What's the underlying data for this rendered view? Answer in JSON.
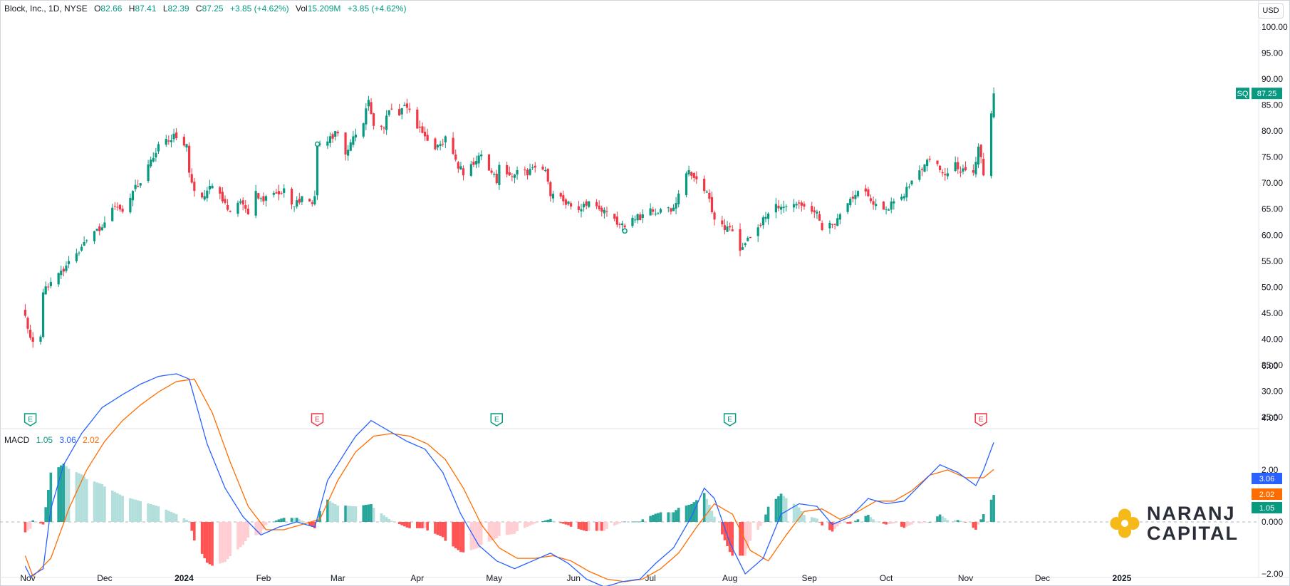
{
  "header": {
    "symbol": "Block, Inc., 1D, NYSE",
    "o_label": "O",
    "o_value": "82.66",
    "h_label": "H",
    "h_value": "87.41",
    "l_label": "L",
    "l_value": "82.39",
    "c_label": "C",
    "c_value": "87.25",
    "change": "+3.85 (+4.62%)",
    "vol_label": "Vol",
    "vol_value": "15.209M",
    "vol_change": "+3.85 (+4.62%)"
  },
  "currency": "USD",
  "price_tag": {
    "ticker": "SQ",
    "value": "87.25"
  },
  "macd_header": {
    "name": "MACD",
    "hist": "1.05",
    "macd": "3.06",
    "signal": "2.02"
  },
  "macd_tags": [
    "3.06",
    "2.02",
    "1.05"
  ],
  "logo": {
    "line1": "NARANJ",
    "line2": "CAPITAL"
  },
  "colors": {
    "up": "#089981",
    "down": "#f23645",
    "macd": "#2962ff",
    "signal": "#ff6d00",
    "hist_up_strong": "#26a69a",
    "hist_up_weak": "#b2dfdb",
    "hist_down_strong": "#ff5252",
    "hist_down_weak": "#ffcdd2"
  },
  "chart_data": [
    {
      "type": "candlestick",
      "title": "Block, Inc., 1D, NYSE",
      "x_ticks": [
        "Nov",
        "Dec",
        "2024",
        "Feb",
        "Mar",
        "Apr",
        "May",
        "Jun",
        "Jul",
        "Aug",
        "Sep",
        "Oct",
        "Nov",
        "Dec",
        "2025"
      ],
      "y_ticks": [
        "100.00",
        "95.00",
        "90.00",
        "85.00",
        "80.00",
        "75.00",
        "70.00",
        "65.00",
        "60.00",
        "55.00",
        "50.00",
        "45.00",
        "40.00",
        "35.00",
        "30.00",
        "25.00"
      ],
      "ylim": [
        25,
        100
      ],
      "earnings_markers": [
        {
          "date": "2023-11-02",
          "label": "E",
          "result": "beat"
        },
        {
          "date": "2024-02-22",
          "label": "E",
          "result": "miss"
        },
        {
          "date": "2024-05-02",
          "label": "E",
          "result": "beat"
        },
        {
          "date": "2024-08-01",
          "label": "E",
          "result": "beat"
        },
        {
          "date": "2024-11-07",
          "label": "E",
          "result": "miss"
        }
      ],
      "close_path": [
        [
          "2023-10-31",
          44.5
        ],
        [
          "2023-11-01",
          42.0
        ],
        [
          "2023-11-03",
          39.5
        ],
        [
          "2023-11-06",
          40.5
        ],
        [
          "2023-11-07",
          49.0
        ],
        [
          "2023-11-10",
          51.0
        ],
        [
          "2023-11-15",
          53.0
        ],
        [
          "2023-11-20",
          56.5
        ],
        [
          "2023-11-24",
          59.0
        ],
        [
          "2023-11-30",
          61.5
        ],
        [
          "2023-12-05",
          65.5
        ],
        [
          "2023-12-08",
          64.5
        ],
        [
          "2023-12-12",
          68.5
        ],
        [
          "2023-12-15",
          70.0
        ],
        [
          "2023-12-19",
          74.5
        ],
        [
          "2023-12-22",
          77.5
        ],
        [
          "2023-12-26",
          78.0
        ],
        [
          "2023-12-28",
          79.5
        ],
        [
          "2024-01-02",
          77.5
        ],
        [
          "2024-01-03",
          72.0
        ],
        [
          "2024-01-05",
          68.5
        ],
        [
          "2024-01-09",
          67.5
        ],
        [
          "2024-01-12",
          69.5
        ],
        [
          "2024-01-16",
          66.5
        ],
        [
          "2024-01-19",
          64.5
        ],
        [
          "2024-01-23",
          66.5
        ],
        [
          "2024-01-26",
          64.0
        ],
        [
          "2024-01-29",
          68.5
        ],
        [
          "2024-02-01",
          66.5
        ],
        [
          "2024-02-06",
          68.0
        ],
        [
          "2024-02-09",
          69.0
        ],
        [
          "2024-02-13",
          65.5
        ],
        [
          "2024-02-16",
          67.5
        ],
        [
          "2024-02-20",
          66.0
        ],
        [
          "2024-02-21",
          67.5
        ],
        [
          "2024-02-22",
          77.5
        ],
        [
          "2024-02-26",
          78.0
        ],
        [
          "2024-02-29",
          80.0
        ],
        [
          "2024-03-04",
          75.5
        ],
        [
          "2024-03-07",
          79.0
        ],
        [
          "2024-03-11",
          81.5
        ],
        [
          "2024-03-13",
          86.0
        ],
        [
          "2024-03-15",
          81.0
        ],
        [
          "2024-03-19",
          80.5
        ],
        [
          "2024-03-21",
          84.0
        ],
        [
          "2024-03-25",
          83.0
        ],
        [
          "2024-03-27",
          85.0
        ],
        [
          "2024-03-28",
          84.5
        ],
        [
          "2024-04-01",
          80.5
        ],
        [
          "2024-04-04",
          79.0
        ],
        [
          "2024-04-08",
          76.5
        ],
        [
          "2024-04-10",
          77.5
        ],
        [
          "2024-04-12",
          79.0
        ],
        [
          "2024-04-16",
          74.5
        ],
        [
          "2024-04-19",
          71.5
        ],
        [
          "2024-04-23",
          73.5
        ],
        [
          "2024-04-26",
          75.5
        ],
        [
          "2024-04-30",
          72.0
        ],
        [
          "2024-05-02",
          70.0
        ],
        [
          "2024-05-03",
          73.5
        ],
        [
          "2024-05-07",
          71.5
        ],
        [
          "2024-05-10",
          72.5
        ],
        [
          "2024-05-14",
          71.5
        ],
        [
          "2024-05-17",
          73.0
        ],
        [
          "2024-05-21",
          72.5
        ],
        [
          "2024-05-23",
          67.5
        ],
        [
          "2024-05-28",
          66.5
        ],
        [
          "2024-05-31",
          65.5
        ],
        [
          "2024-06-04",
          65.0
        ],
        [
          "2024-06-07",
          66.5
        ],
        [
          "2024-06-11",
          65.0
        ],
        [
          "2024-06-14",
          64.5
        ],
        [
          "2024-06-18",
          62.0
        ],
        [
          "2024-06-21",
          61.5
        ],
        [
          "2024-06-25",
          63.0
        ],
        [
          "2024-06-28",
          64.0
        ],
        [
          "2024-07-02",
          64.5
        ],
        [
          "2024-07-05",
          65.0
        ],
        [
          "2024-07-09",
          64.5
        ],
        [
          "2024-07-12",
          68.0
        ],
        [
          "2024-07-16",
          72.5
        ],
        [
          "2024-07-18",
          71.0
        ],
        [
          "2024-07-22",
          68.5
        ],
        [
          "2024-07-24",
          67.0
        ],
        [
          "2024-07-26",
          63.0
        ],
        [
          "2024-07-30",
          61.0
        ],
        [
          "2024-08-01",
          61.5
        ],
        [
          "2024-08-05",
          57.0
        ],
        [
          "2024-08-08",
          59.5
        ],
        [
          "2024-08-12",
          61.5
        ],
        [
          "2024-08-15",
          63.5
        ],
        [
          "2024-08-19",
          66.0
        ],
        [
          "2024-08-23",
          65.5
        ],
        [
          "2024-08-27",
          66.0
        ],
        [
          "2024-08-30",
          65.5
        ],
        [
          "2024-09-04",
          64.5
        ],
        [
          "2024-09-06",
          61.0
        ],
        [
          "2024-09-10",
          62.0
        ],
        [
          "2024-09-13",
          64.0
        ],
        [
          "2024-09-17",
          67.0
        ],
        [
          "2024-09-20",
          68.5
        ],
        [
          "2024-09-24",
          67.5
        ],
        [
          "2024-09-27",
          66.0
        ],
        [
          "2024-10-01",
          65.0
        ],
        [
          "2024-10-04",
          66.5
        ],
        [
          "2024-10-08",
          67.5
        ],
        [
          "2024-10-11",
          70.5
        ],
        [
          "2024-10-15",
          72.5
        ],
        [
          "2024-10-18",
          74.5
        ],
        [
          "2024-10-22",
          72.5
        ],
        [
          "2024-10-24",
          71.5
        ],
        [
          "2024-10-28",
          74.0
        ],
        [
          "2024-10-30",
          72.0
        ],
        [
          "2024-11-01",
          72.5
        ],
        [
          "2024-11-04",
          72.0
        ],
        [
          "2024-11-06",
          77.0
        ],
        [
          "2024-11-07",
          75.0
        ],
        [
          "2024-11-08",
          71.5
        ],
        [
          "2024-11-11",
          83.4
        ],
        [
          "2024-11-12",
          87.25
        ]
      ]
    },
    {
      "type": "macd",
      "title": "MACD",
      "y_ticks": [
        "6.00",
        "4.00",
        "2.00",
        "0.000",
        "−2.00"
      ],
      "ylim": [
        -3,
        6.5
      ],
      "last": {
        "histogram": 1.05,
        "macd": 3.06,
        "signal": 2.02
      },
      "macd": [
        [
          "2023-10-31",
          -1.7
        ],
        [
          "2023-11-02",
          -2.1
        ],
        [
          "2023-11-07",
          -1.8
        ],
        [
          "2023-11-10",
          0.5
        ],
        [
          "2023-11-15",
          2.2
        ],
        [
          "2023-11-22",
          3.4
        ],
        [
          "2023-11-30",
          4.4
        ],
        [
          "2023-12-08",
          4.9
        ],
        [
          "2023-12-15",
          5.3
        ],
        [
          "2023-12-22",
          5.6
        ],
        [
          "2023-12-29",
          5.7
        ],
        [
          "2024-01-03",
          5.5
        ],
        [
          "2024-01-10",
          3.0
        ],
        [
          "2024-01-17",
          1.3
        ],
        [
          "2024-01-24",
          0.2
        ],
        [
          "2024-01-31",
          -0.5
        ],
        [
          "2024-02-07",
          -0.2
        ],
        [
          "2024-02-14",
          0.0
        ],
        [
          "2024-02-21",
          -0.2
        ],
        [
          "2024-02-26",
          1.6
        ],
        [
          "2024-03-04",
          2.7
        ],
        [
          "2024-03-08",
          3.3
        ],
        [
          "2024-03-14",
          3.9
        ],
        [
          "2024-03-21",
          3.5
        ],
        [
          "2024-03-28",
          3.1
        ],
        [
          "2024-04-04",
          2.8
        ],
        [
          "2024-04-11",
          1.9
        ],
        [
          "2024-04-18",
          0.3
        ],
        [
          "2024-04-25",
          -0.9
        ],
        [
          "2024-05-02",
          -1.5
        ],
        [
          "2024-05-09",
          -1.8
        ],
        [
          "2024-05-16",
          -1.5
        ],
        [
          "2024-05-23",
          -1.2
        ],
        [
          "2024-05-30",
          -1.6
        ],
        [
          "2024-06-06",
          -2.2
        ],
        [
          "2024-06-13",
          -2.5
        ],
        [
          "2024-06-20",
          -2.3
        ],
        [
          "2024-06-27",
          -2.2
        ],
        [
          "2024-07-03",
          -1.6
        ],
        [
          "2024-07-10",
          -1.0
        ],
        [
          "2024-07-17",
          0.2
        ],
        [
          "2024-07-22",
          1.3
        ],
        [
          "2024-07-26",
          0.9
        ],
        [
          "2024-08-01",
          -0.8
        ],
        [
          "2024-08-07",
          -2.0
        ],
        [
          "2024-08-14",
          -1.4
        ],
        [
          "2024-08-21",
          0.3
        ],
        [
          "2024-08-28",
          0.7
        ],
        [
          "2024-09-04",
          0.6
        ],
        [
          "2024-09-10",
          -0.1
        ],
        [
          "2024-09-17",
          0.2
        ],
        [
          "2024-09-24",
          0.9
        ],
        [
          "2024-10-01",
          0.7
        ],
        [
          "2024-10-08",
          0.8
        ],
        [
          "2024-10-15",
          1.5
        ],
        [
          "2024-10-22",
          2.2
        ],
        [
          "2024-10-29",
          1.9
        ],
        [
          "2024-11-05",
          1.4
        ],
        [
          "2024-11-08",
          2.0
        ],
        [
          "2024-11-12",
          3.06
        ]
      ],
      "signal": [
        [
          "2023-10-31",
          -1.3
        ],
        [
          "2023-11-03",
          -2.1
        ],
        [
          "2023-11-10",
          -1.4
        ],
        [
          "2023-11-17",
          0.5
        ],
        [
          "2023-11-24",
          2.0
        ],
        [
          "2023-12-01",
          3.1
        ],
        [
          "2023-12-08",
          3.9
        ],
        [
          "2023-12-15",
          4.5
        ],
        [
          "2023-12-22",
          5.0
        ],
        [
          "2023-12-29",
          5.4
        ],
        [
          "2024-01-05",
          5.5
        ],
        [
          "2024-01-12",
          4.2
        ],
        [
          "2024-01-19",
          2.3
        ],
        [
          "2024-01-26",
          0.6
        ],
        [
          "2024-02-02",
          -0.3
        ],
        [
          "2024-02-09",
          -0.3
        ],
        [
          "2024-02-16",
          -0.1
        ],
        [
          "2024-02-23",
          0.1
        ],
        [
          "2024-03-01",
          1.6
        ],
        [
          "2024-03-08",
          2.7
        ],
        [
          "2024-03-15",
          3.3
        ],
        [
          "2024-03-22",
          3.4
        ],
        [
          "2024-03-29",
          3.3
        ],
        [
          "2024-04-05",
          3.0
        ],
        [
          "2024-04-12",
          2.4
        ],
        [
          "2024-04-19",
          1.3
        ],
        [
          "2024-04-26",
          -0.1
        ],
        [
          "2024-05-03",
          -1.0
        ],
        [
          "2024-05-10",
          -1.4
        ],
        [
          "2024-05-17",
          -1.4
        ],
        [
          "2024-05-24",
          -1.3
        ],
        [
          "2024-05-31",
          -1.5
        ],
        [
          "2024-06-07",
          -1.9
        ],
        [
          "2024-06-14",
          -2.2
        ],
        [
          "2024-06-21",
          -2.3
        ],
        [
          "2024-06-28",
          -2.2
        ],
        [
          "2024-07-05",
          -1.8
        ],
        [
          "2024-07-12",
          -1.2
        ],
        [
          "2024-07-19",
          -0.2
        ],
        [
          "2024-07-26",
          0.7
        ],
        [
          "2024-08-02",
          0.3
        ],
        [
          "2024-08-09",
          -1.1
        ],
        [
          "2024-08-16",
          -1.5
        ],
        [
          "2024-08-23",
          -0.5
        ],
        [
          "2024-08-30",
          0.4
        ],
        [
          "2024-09-06",
          0.5
        ],
        [
          "2024-09-13",
          0.1
        ],
        [
          "2024-09-20",
          0.4
        ],
        [
          "2024-09-27",
          0.8
        ],
        [
          "2024-10-04",
          0.8
        ],
        [
          "2024-10-11",
          1.2
        ],
        [
          "2024-10-18",
          1.8
        ],
        [
          "2024-10-25",
          2.0
        ],
        [
          "2024-11-01",
          1.7
        ],
        [
          "2024-11-08",
          1.7
        ],
        [
          "2024-11-12",
          2.02
        ]
      ]
    }
  ]
}
